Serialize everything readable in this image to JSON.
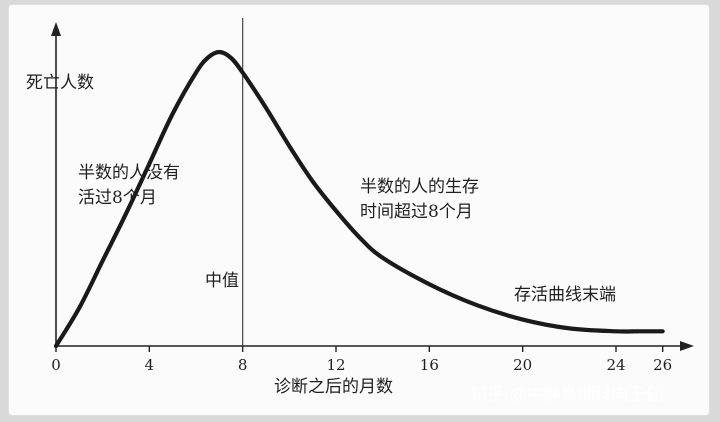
{
  "chart_data": {
    "type": "line",
    "ylabel": "死亡人数",
    "xlabel": "诊断之后的月数",
    "xlim": [
      0,
      27
    ],
    "ylim": [
      0,
      1
    ],
    "x_ticks": [
      0,
      4,
      8,
      12,
      16,
      20,
      24,
      26
    ],
    "median_x": 8,
    "median_label": "中值",
    "series": [
      {
        "x": [
          0,
          1,
          2,
          3,
          4,
          5,
          6,
          6.5,
          7,
          7.5,
          8,
          9,
          10,
          11,
          12,
          13,
          14,
          16,
          18,
          20,
          22,
          24,
          25,
          26
        ],
        "y": [
          0,
          0.13,
          0.29,
          0.45,
          0.62,
          0.79,
          0.93,
          0.98,
          1.0,
          0.98,
          0.93,
          0.81,
          0.68,
          0.56,
          0.46,
          0.37,
          0.3,
          0.21,
          0.14,
          0.09,
          0.06,
          0.05,
          0.05,
          0.05
        ]
      }
    ],
    "annotations": {
      "left_line1": "半数的人没有",
      "left_line2": "活过8个月",
      "right_line1": "半数的人的生存",
      "right_line2": "时间超过8个月",
      "tail": "存活曲线末端"
    }
  },
  "watermark": "知乎 @中肿鼻咽科向王任"
}
